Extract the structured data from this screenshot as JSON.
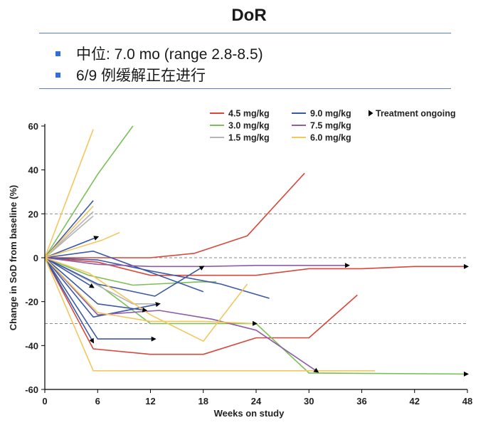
{
  "slide": {
    "title": "DoR",
    "bullets": [
      "中位: 7.0 mo (range 2.8-8.5)",
      "6/9 例缓解正在进行"
    ]
  },
  "colors": {
    "4.5 mg/kg": "#d9473a",
    "3.0 mg/kg": "#7bbf55",
    "1.5 mg/kg": "#b5b5b5",
    "9.0 mg/kg": "#3b58a6",
    "7.5 mg/kg": "#8e5ca8",
    "6.0 mg/kg": "#f2c75e",
    "ref": "#8a8a8a",
    "axis": "#000000",
    "rule": "#5b7fb7"
  },
  "chart_data": {
    "type": "line",
    "title": "",
    "xlabel": "Weeks on study",
    "ylabel": "Change in SoD from baseline (%)",
    "xlim": [
      0,
      48
    ],
    "ylim": [
      -60,
      60
    ],
    "xticks": [
      "0",
      "6",
      "12",
      "18",
      "24",
      "30",
      "36",
      "42",
      "48"
    ],
    "yticks": [
      "60",
      "40",
      "20",
      "0",
      "-20",
      "-40",
      "-60"
    ],
    "reference_lines": [
      20,
      0,
      -30
    ],
    "legend": {
      "entries": [
        "4.5 mg/kg",
        "3.0 mg/kg",
        "1.5 mg/kg",
        "9.0 mg/kg",
        "7.5 mg/kg",
        "6.0 mg/kg"
      ],
      "ongoing_label": "Treatment ongoing",
      "placement": "top-right"
    },
    "series": [
      {
        "dose": "4.5 mg/kg",
        "points": [
          [
            0,
            0
          ],
          [
            6,
            0
          ],
          [
            12,
            0
          ],
          [
            17,
            2
          ],
          [
            23,
            10
          ],
          [
            29.5,
            38.5
          ]
        ]
      },
      {
        "dose": "4.5 mg/kg",
        "points": [
          [
            0,
            0
          ],
          [
            6,
            -2
          ],
          [
            12,
            -8
          ],
          [
            24,
            -8
          ],
          [
            30,
            -5
          ],
          [
            36,
            -5
          ],
          [
            42,
            -4
          ],
          [
            48,
            -4
          ]
        ],
        "ongoing": true
      },
      {
        "dose": "4.5 mg/kg",
        "points": [
          [
            0,
            0
          ],
          [
            5.5,
            -41.5
          ],
          [
            12,
            -44
          ],
          [
            18,
            -44
          ],
          [
            24,
            -36.5
          ],
          [
            30,
            -36.5
          ],
          [
            35.5,
            -17
          ]
        ]
      },
      {
        "dose": "3.0 mg/kg",
        "points": [
          [
            0,
            0
          ],
          [
            6,
            38
          ],
          [
            10,
            60
          ]
        ]
      },
      {
        "dose": "3.0 mg/kg",
        "points": [
          [
            0,
            0
          ],
          [
            5,
            -8
          ],
          [
            10,
            -12.5
          ],
          [
            17.5,
            -11
          ],
          [
            19.5,
            -11
          ]
        ]
      },
      {
        "dose": "3.0 mg/kg",
        "points": [
          [
            0,
            0
          ],
          [
            6,
            -12
          ],
          [
            12,
            -30
          ],
          [
            18,
            -30
          ],
          [
            24,
            -30
          ],
          [
            30,
            -52.5
          ],
          [
            48,
            -53
          ]
        ],
        "ongoing": true
      },
      {
        "dose": "1.5 mg/kg",
        "points": [
          [
            0,
            0
          ],
          [
            5.5,
            19
          ]
        ]
      },
      {
        "dose": "1.5 mg/kg",
        "points": [
          [
            0,
            0
          ],
          [
            5.5,
            21
          ]
        ]
      },
      {
        "dose": "1.5 mg/kg",
        "points": [
          [
            0,
            0
          ],
          [
            10,
            -21
          ],
          [
            12.5,
            -21
          ]
        ]
      },
      {
        "dose": "9.0 mg/kg",
        "points": [
          [
            0,
            0
          ],
          [
            5.5,
            26
          ]
        ]
      },
      {
        "dose": "9.0 mg/kg",
        "points": [
          [
            0,
            0
          ],
          [
            6,
            9.5
          ]
        ],
        "ongoing": true
      },
      {
        "dose": "9.0 mg/kg",
        "points": [
          [
            0,
            0
          ],
          [
            5.5,
            3
          ],
          [
            18,
            -15.5
          ]
        ]
      },
      {
        "dose": "9.0 mg/kg",
        "points": [
          [
            0,
            0
          ],
          [
            6,
            -1
          ],
          [
            12,
            -6
          ],
          [
            20,
            -12
          ],
          [
            25.5,
            -18.5
          ]
        ]
      },
      {
        "dose": "9.0 mg/kg",
        "points": [
          [
            0,
            0
          ],
          [
            6,
            -12
          ],
          [
            12.5,
            -17.5
          ],
          [
            18,
            -4
          ]
        ],
        "ongoing": true
      },
      {
        "dose": "9.0 mg/kg",
        "points": [
          [
            0,
            0
          ],
          [
            5.5,
            -13.5
          ]
        ],
        "ongoing": true
      },
      {
        "dose": "9.0 mg/kg",
        "points": [
          [
            0,
            0
          ],
          [
            6,
            -21
          ],
          [
            11.5,
            -24
          ]
        ],
        "ongoing": true
      },
      {
        "dose": "9.0 mg/kg",
        "points": [
          [
            0,
            0
          ],
          [
            5.5,
            -27
          ],
          [
            13,
            -21
          ]
        ],
        "ongoing": true
      },
      {
        "dose": "9.0 mg/kg",
        "points": [
          [
            0,
            0
          ],
          [
            5.5,
            -38.5
          ]
        ],
        "ongoing": true
      },
      {
        "dose": "9.0 mg/kg",
        "points": [
          [
            0,
            0
          ],
          [
            6,
            -37
          ],
          [
            12.5,
            -37
          ]
        ],
        "ongoing": true
      },
      {
        "dose": "7.5 mg/kg",
        "points": [
          [
            0,
            0
          ],
          [
            6,
            -3
          ],
          [
            12,
            -4
          ],
          [
            18,
            -4
          ],
          [
            24,
            -3.5
          ],
          [
            34.5,
            -3.5
          ]
        ],
        "ongoing": true
      },
      {
        "dose": "7.5 mg/kg",
        "points": [
          [
            0,
            0
          ],
          [
            6,
            -26
          ],
          [
            13,
            -24
          ],
          [
            19,
            -28
          ],
          [
            24,
            -33
          ],
          [
            31,
            -52
          ]
        ],
        "ongoing": true
      },
      {
        "dose": "6.0 mg/kg",
        "points": [
          [
            0,
            0
          ],
          [
            5.5,
            58.5
          ]
        ]
      },
      {
        "dose": "6.0 mg/kg",
        "points": [
          [
            0,
            0
          ],
          [
            5.5,
            23.5
          ]
        ]
      },
      {
        "dose": "6.0 mg/kg",
        "points": [
          [
            0,
            0
          ],
          [
            6.5,
            8
          ],
          [
            8.5,
            11.5
          ]
        ]
      },
      {
        "dose": "6.0 mg/kg",
        "points": [
          [
            0,
            0
          ],
          [
            5,
            -7
          ],
          [
            12,
            -26
          ],
          [
            18,
            -38
          ],
          [
            23,
            -12
          ]
        ]
      },
      {
        "dose": "6.0 mg/kg",
        "points": [
          [
            0,
            0
          ],
          [
            6,
            -25
          ],
          [
            12,
            -29
          ],
          [
            18,
            -29
          ],
          [
            24,
            -30
          ]
        ],
        "ongoing": true
      },
      {
        "dose": "6.0 mg/kg",
        "points": [
          [
            0,
            0
          ],
          [
            5.5,
            -51.5
          ],
          [
            24,
            -51.5
          ],
          [
            37.5,
            -51.5
          ]
        ]
      }
    ]
  }
}
